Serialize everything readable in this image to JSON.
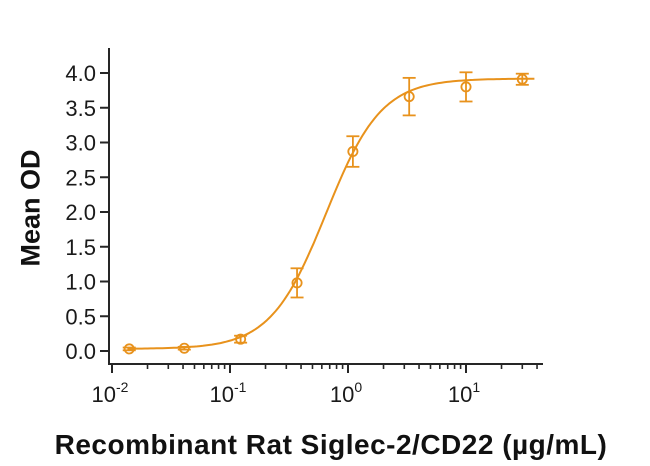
{
  "chart_data": {
    "type": "scatter",
    "title": "",
    "xlabel": "Recombinant Rat Siglec-2/CD22 (µg/mL)",
    "ylabel": "Mean OD",
    "x_scale": "log",
    "xlim": [
      0.009,
      45
    ],
    "ylim": [
      -0.2,
      4.35
    ],
    "grid": false,
    "legend": "none",
    "axis_color": "#262626",
    "y_ticks": [
      0.0,
      0.5,
      1.0,
      1.5,
      2.0,
      2.5,
      3.0,
      3.5,
      4.0
    ],
    "x_major_ticks": [
      {
        "value": 0.01,
        "base": "10",
        "exp": "-2"
      },
      {
        "value": 0.1,
        "base": "10",
        "exp": "-1"
      },
      {
        "value": 1,
        "base": "10",
        "exp": "0"
      },
      {
        "value": 10,
        "base": "10",
        "exp": "1"
      }
    ],
    "series": [
      {
        "color": "#E8921C",
        "marker": "open-circle",
        "points": [
          {
            "x": 0.014,
            "y": 0.03,
            "err": 0.02
          },
          {
            "x": 0.041,
            "y": 0.04,
            "err": 0.02
          },
          {
            "x": 0.123,
            "y": 0.17,
            "err": 0.05
          },
          {
            "x": 0.37,
            "y": 0.98,
            "err": 0.21
          },
          {
            "x": 1.1,
            "y": 2.87,
            "err": 0.22
          },
          {
            "x": 3.3,
            "y": 3.66,
            "err": 0.27
          },
          {
            "x": 10,
            "y": 3.8,
            "err": 0.21
          },
          {
            "x": 30,
            "y": 3.91,
            "err": 0.08
          }
        ],
        "fit": {
          "model": "4PL",
          "bottom": 0.03,
          "top": 3.92,
          "ec50": 0.65,
          "hill": 1.85,
          "x_start": 0.0135,
          "x_end": 38
        }
      }
    ]
  }
}
